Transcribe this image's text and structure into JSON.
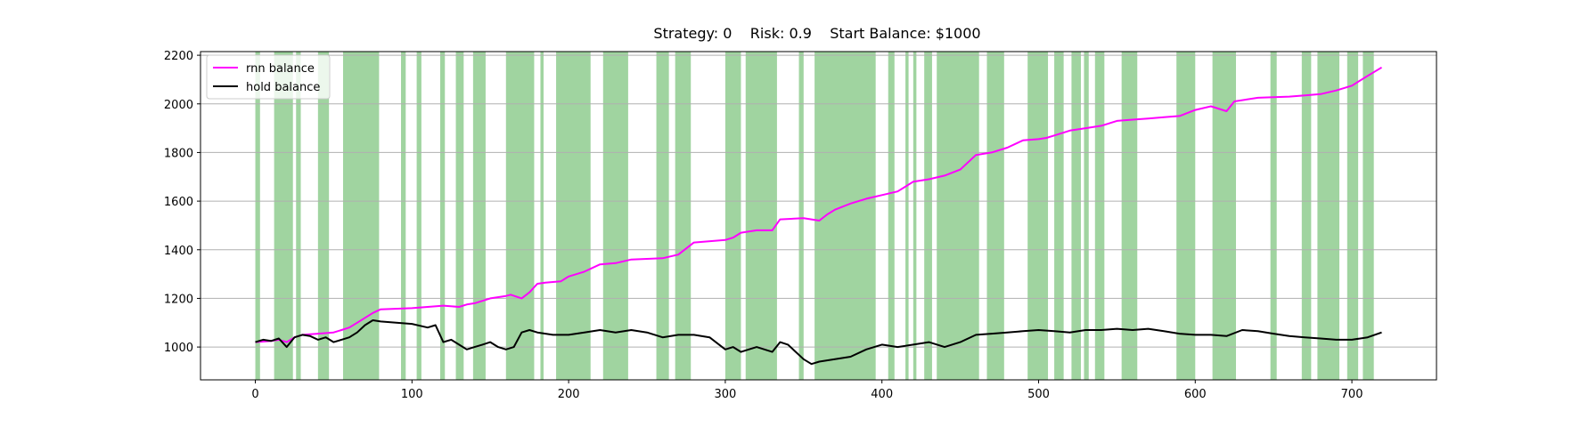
{
  "chart_data": {
    "type": "line",
    "title": "Strategy: 0    Risk: 0.9    Start Balance: $1000",
    "xlabel": "",
    "ylabel": "",
    "xlim": [
      -35,
      754
    ],
    "ylim": [
      865,
      2215
    ],
    "xticks": [
      0,
      100,
      200,
      300,
      400,
      500,
      600,
      700
    ],
    "yticks": [
      1000,
      1200,
      1400,
      1600,
      1800,
      2000,
      2200
    ],
    "grid": "horizontal",
    "legend_position": "top-left",
    "colors": {
      "rnn": "#ff00ff",
      "hold": "#000000",
      "span": "#2ca02c"
    },
    "series": [
      {
        "name": "rnn balance",
        "color": "#ff00ff",
        "x": [
          0,
          10,
          15,
          20,
          25,
          30,
          40,
          50,
          55,
          60,
          65,
          70,
          75,
          80,
          100,
          120,
          130,
          135,
          140,
          150,
          160,
          163,
          170,
          175,
          180,
          185,
          195,
          200,
          210,
          220,
          230,
          240,
          260,
          270,
          280,
          300,
          305,
          310,
          320,
          330,
          335,
          350,
          360,
          365,
          370,
          380,
          390,
          400,
          410,
          420,
          430,
          440,
          450,
          460,
          470,
          480,
          490,
          500,
          505,
          510,
          520,
          530,
          540,
          550,
          560,
          570,
          580,
          590,
          600,
          610,
          620,
          625,
          640,
          660,
          670,
          680,
          690,
          700,
          710,
          719
        ],
        "values": [
          1020,
          1025,
          1030,
          1020,
          1040,
          1050,
          1055,
          1060,
          1070,
          1080,
          1100,
          1120,
          1140,
          1155,
          1160,
          1170,
          1165,
          1175,
          1180,
          1200,
          1210,
          1215,
          1200,
          1225,
          1260,
          1265,
          1270,
          1290,
          1310,
          1340,
          1345,
          1360,
          1365,
          1380,
          1430,
          1440,
          1450,
          1470,
          1480,
          1480,
          1525,
          1530,
          1520,
          1545,
          1565,
          1590,
          1610,
          1625,
          1640,
          1680,
          1690,
          1705,
          1730,
          1790,
          1800,
          1820,
          1850,
          1855,
          1860,
          1870,
          1890,
          1900,
          1910,
          1930,
          1935,
          1940,
          1945,
          1950,
          1975,
          1990,
          1970,
          2010,
          2025,
          2030,
          2035,
          2040,
          2055,
          2075,
          2115,
          2150
        ]
      },
      {
        "name": "hold balance",
        "color": "#000000",
        "x": [
          0,
          5,
          10,
          15,
          20,
          25,
          30,
          35,
          40,
          45,
          50,
          55,
          60,
          65,
          70,
          75,
          80,
          90,
          100,
          110,
          115,
          120,
          125,
          130,
          135,
          140,
          145,
          150,
          155,
          160,
          165,
          170,
          175,
          180,
          190,
          200,
          210,
          220,
          230,
          240,
          250,
          260,
          270,
          280,
          290,
          300,
          305,
          310,
          320,
          330,
          335,
          340,
          345,
          350,
          355,
          360,
          370,
          380,
          390,
          400,
          410,
          420,
          430,
          440,
          450,
          460,
          470,
          480,
          490,
          500,
          510,
          520,
          530,
          540,
          550,
          560,
          570,
          580,
          590,
          600,
          610,
          620,
          630,
          640,
          650,
          660,
          670,
          680,
          690,
          700,
          710,
          719
        ],
        "values": [
          1020,
          1030,
          1025,
          1035,
          1000,
          1040,
          1050,
          1045,
          1030,
          1040,
          1020,
          1030,
          1040,
          1060,
          1090,
          1110,
          1105,
          1100,
          1095,
          1080,
          1090,
          1020,
          1030,
          1010,
          990,
          1000,
          1010,
          1020,
          1000,
          990,
          1000,
          1060,
          1070,
          1060,
          1050,
          1050,
          1060,
          1070,
          1060,
          1070,
          1060,
          1040,
          1050,
          1050,
          1040,
          990,
          1000,
          980,
          1000,
          980,
          1020,
          1010,
          980,
          950,
          930,
          940,
          950,
          960,
          990,
          1010,
          1000,
          1010,
          1020,
          1000,
          1020,
          1050,
          1055,
          1060,
          1065,
          1070,
          1065,
          1060,
          1070,
          1070,
          1075,
          1070,
          1075,
          1065,
          1055,
          1050,
          1050,
          1045,
          1070,
          1065,
          1055,
          1045,
          1040,
          1035,
          1030,
          1030,
          1040,
          1060
        ]
      }
    ],
    "spans": [
      [
        0,
        3
      ],
      [
        12,
        24
      ],
      [
        26,
        29
      ],
      [
        40,
        47
      ],
      [
        56,
        79
      ],
      [
        93,
        96
      ],
      [
        103,
        106
      ],
      [
        118,
        121
      ],
      [
        128,
        133
      ],
      [
        139,
        147
      ],
      [
        160,
        178
      ],
      [
        182,
        184
      ],
      [
        192,
        214
      ],
      [
        222,
        238
      ],
      [
        256,
        264
      ],
      [
        268,
        278
      ],
      [
        300,
        310
      ],
      [
        313,
        333
      ],
      [
        347,
        350
      ],
      [
        357,
        396
      ],
      [
        404,
        408
      ],
      [
        415,
        417
      ],
      [
        420,
        422
      ],
      [
        427,
        432
      ],
      [
        435,
        462
      ],
      [
        467,
        478
      ],
      [
        493,
        506
      ],
      [
        510,
        516
      ],
      [
        521,
        527
      ],
      [
        529,
        532
      ],
      [
        536,
        542
      ],
      [
        553,
        563
      ],
      [
        588,
        600
      ],
      [
        611,
        626
      ],
      [
        648,
        652
      ],
      [
        668,
        674
      ],
      [
        678,
        692
      ],
      [
        697,
        704
      ],
      [
        707,
        714
      ]
    ]
  },
  "legend": {
    "items": [
      {
        "label": "rnn balance",
        "color": "#ff00ff"
      },
      {
        "label": "hold balance",
        "color": "#000000"
      }
    ]
  }
}
